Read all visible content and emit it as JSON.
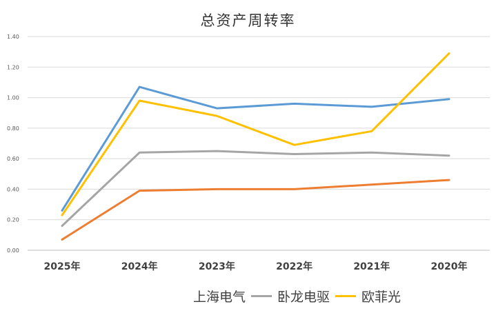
{
  "chart_data": {
    "type": "line",
    "title": "总资产周转率",
    "categories": [
      "2025年",
      "2024年",
      "2023年",
      "2022年",
      "2021年",
      "2020年"
    ],
    "ylim": [
      0,
      1.4
    ],
    "yticks": [
      "0.00",
      "0.20",
      "0.40",
      "0.60",
      "0.80",
      "1.00",
      "1.20",
      "1.40"
    ],
    "grid": true,
    "legend_position": "bottom",
    "series": [
      {
        "name": "上海电气",
        "color": "#5b9bd5",
        "values": [
          0.26,
          1.07,
          0.93,
          0.96,
          0.94,
          0.99
        ]
      },
      {
        "name": "卧龙电驱",
        "color": "#a5a5a5",
        "values": [
          0.16,
          0.64,
          0.65,
          0.63,
          0.64,
          0.62
        ]
      },
      {
        "name": "欧菲光",
        "color": "#ffc000",
        "values": [
          0.23,
          0.98,
          0.88,
          0.69,
          0.78,
          1.29
        ]
      },
      {
        "name": "",
        "color": "#ed7d31",
        "values": [
          0.07,
          0.39,
          0.4,
          0.4,
          0.43,
          0.46
        ]
      }
    ]
  }
}
